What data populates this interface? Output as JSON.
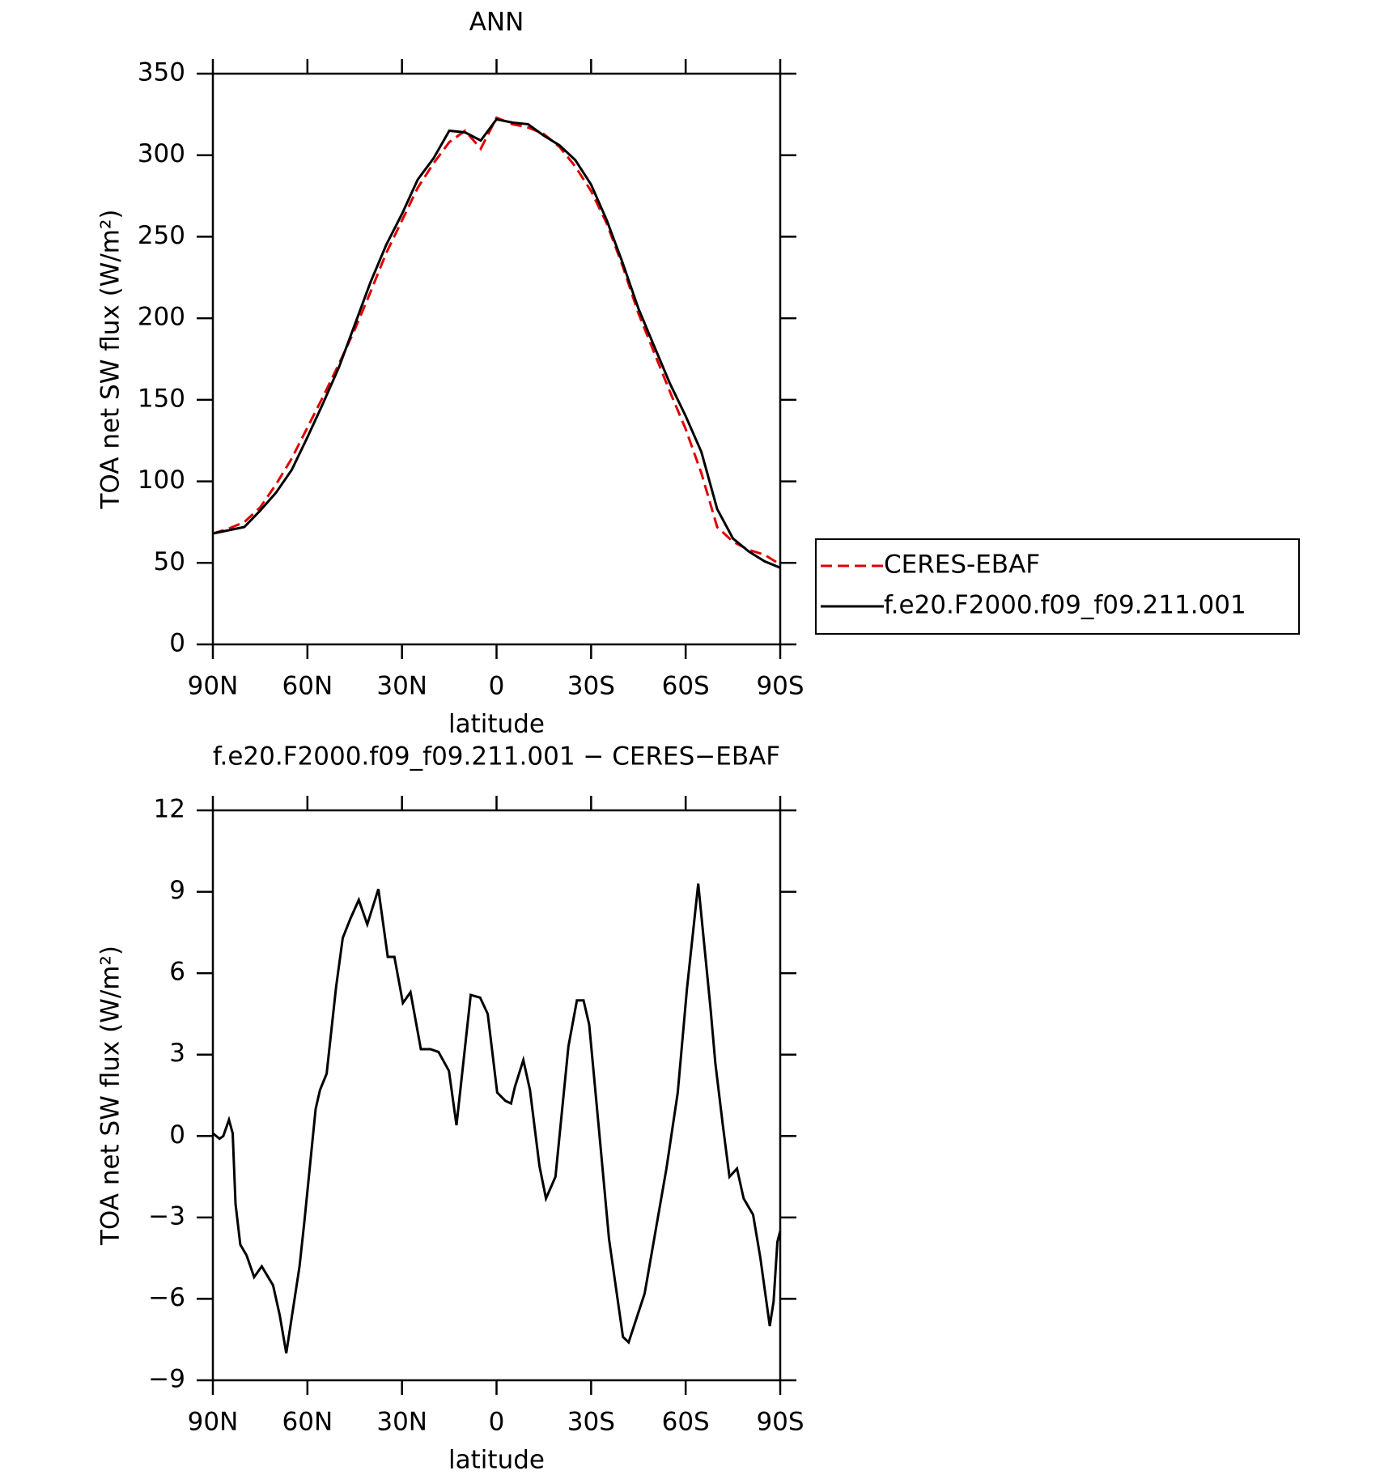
{
  "chart_data": [
    {
      "type": "line",
      "title": "ANN",
      "x_label": "latitude",
      "y_label": "TOA net SW flux (W/m²)",
      "x": [
        90,
        85,
        80,
        75,
        70,
        65,
        60,
        55,
        50,
        45,
        40,
        35,
        30,
        25,
        20,
        15,
        10,
        5,
        0,
        -5,
        -10,
        -15,
        -20,
        -25,
        -30,
        -35,
        -40,
        -45,
        -50,
        -55,
        -60,
        -65,
        -70,
        -75,
        -80,
        -85,
        -90
      ],
      "series": [
        {
          "name": "CERES-EBAF",
          "color": "#e00000",
          "line_style": "dashed",
          "values": [
            68,
            71,
            75,
            84,
            98,
            114,
            133,
            152,
            172,
            193,
            216,
            240,
            260,
            280,
            295,
            308,
            315,
            304,
            323,
            319,
            317,
            313,
            305,
            293,
            278,
            258,
            232,
            203,
            179,
            155,
            132,
            105,
            72,
            63,
            58,
            55,
            49
          ]
        },
        {
          "name": "f.e20.F2000.f09_f09.211.001",
          "color": "#000000",
          "line_style": "solid",
          "values": [
            68,
            70,
            72,
            82,
            93,
            107,
            127,
            148,
            170,
            196,
            222,
            245,
            264,
            285,
            298,
            315,
            314,
            309,
            322,
            320,
            319,
            312,
            306,
            297,
            282,
            260,
            234,
            206,
            183,
            160,
            140,
            118,
            83,
            65,
            57,
            51,
            47
          ]
        }
      ],
      "xlim": [
        90,
        -90
      ],
      "xticks": [
        {
          "value": 90,
          "label": "90N"
        },
        {
          "value": 60,
          "label": "60N"
        },
        {
          "value": 30,
          "label": "30N"
        },
        0,
        {
          "value": -30,
          "label": "30S"
        },
        {
          "value": -60,
          "label": "60S"
        },
        {
          "value": -90,
          "label": "90S"
        }
      ],
      "ylim": [
        0,
        350
      ],
      "yticks": [
        0,
        50,
        100,
        150,
        200,
        250,
        300,
        350
      ],
      "legend": "right"
    },
    {
      "type": "line",
      "title": "f.e20.F2000.f09_f09.211.001 − CERES−EBAF",
      "x_label": "latitude",
      "y_label": "TOA net SW flux (W/m²)",
      "x": [
        90,
        87.9,
        86.7,
        84.9,
        83.7,
        82.8,
        81.3,
        79.3,
        76.9,
        74.5,
        70.9,
        68.8,
        66.7,
        62.5,
        61,
        57.4,
        56,
        53.9,
        50.9,
        48.8,
        46.4,
        43.7,
        41,
        37.5,
        34.5,
        32.4,
        29.7,
        27.3,
        24,
        21,
        18.4,
        15.1,
        12.7,
        11.2,
        8.2,
        5.2,
        2.8,
        -0.2,
        -2.8,
        -4.6,
        -5.8,
        -8.5,
        -10.6,
        -13.6,
        -15.7,
        -18.7,
        -22.8,
        -25.5,
        -27.6,
        -29.4,
        -32.7,
        -35.7,
        -40.1,
        -41.9,
        -47,
        -50,
        -53.9,
        -57.5,
        -60.4,
        -64,
        -67.9,
        -69.4,
        -71.8,
        -73.9,
        -76.3,
        -78.4,
        -81.4,
        -83.7,
        -86.7,
        -87.9,
        -89.1,
        -90
      ],
      "series": [
        {
          "color": "#000000",
          "line_style": "solid",
          "values": [
            0.1,
            -0.1,
            0,
            0.6,
            0.1,
            -2.5,
            -4,
            -4.4,
            -5.2,
            -4.8,
            -5.5,
            -6.6,
            -8,
            -4.8,
            -3.2,
            1,
            1.7,
            2.3,
            5.5,
            7.3,
            8,
            8.7,
            7.8,
            9.1,
            6.6,
            6.6,
            4.9,
            5.3,
            3.2,
            3.2,
            3.1,
            2.4,
            0.4,
            2,
            5.2,
            5.1,
            4.5,
            1.6,
            1.3,
            1.2,
            1.8,
            2.8,
            1.7,
            -1.1,
            -2.3,
            -1.5,
            3.3,
            5,
            5,
            4.1,
            0,
            -3.8,
            -7.4,
            -7.6,
            -5.8,
            -3.8,
            -1.2,
            1.6,
            5.4,
            9.3,
            4.7,
            2.7,
            0.4,
            -1.5,
            -1.2,
            -2.3,
            -2.9,
            -4.5,
            -7,
            -6.1,
            -3.9,
            -3.5
          ]
        }
      ],
      "xlim": [
        90,
        -90
      ],
      "xticks": [
        {
          "value": 90,
          "label": "90N"
        },
        {
          "value": 60,
          "label": "60N"
        },
        {
          "value": 30,
          "label": "30N"
        },
        0,
        {
          "value": -30,
          "label": "30S"
        },
        {
          "value": -60,
          "label": "60S"
        },
        {
          "value": -90,
          "label": "90S"
        }
      ],
      "ylim": [
        -9,
        12
      ],
      "yticks": [
        {
          "value": -9,
          "label": "−9"
        },
        {
          "value": -6,
          "label": "−6"
        },
        {
          "value": -3,
          "label": "−3"
        },
        0,
        3,
        6,
        9,
        12
      ]
    }
  ]
}
